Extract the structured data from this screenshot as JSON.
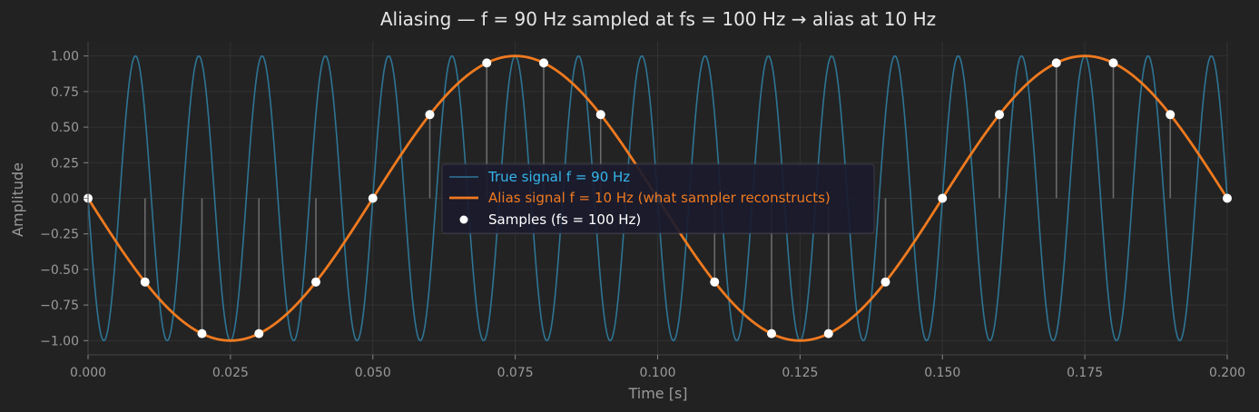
{
  "chart_data": {
    "type": "line",
    "title": "Aliasing  —  f = 90 Hz sampled at fs = 100 Hz  →  alias at 10 Hz",
    "xlabel": "Time [s]",
    "ylabel": "Amplitude",
    "xlim": [
      0,
      0.2
    ],
    "ylim": [
      -1.1,
      1.1
    ],
    "grid": true,
    "legend_position": "center",
    "x_ticks": [
      0,
      0.025,
      0.05,
      0.075,
      0.1,
      0.125,
      0.15,
      0.175,
      0.2
    ],
    "x_tick_labels": [
      "0.000",
      "0.025",
      "0.050",
      "0.075",
      "0.100",
      "0.125",
      "0.150",
      "0.175",
      "0.200"
    ],
    "y_ticks": [
      1,
      0.75,
      0.5,
      0.25,
      0,
      -0.25,
      -0.5,
      -0.75,
      -1
    ],
    "y_tick_labels": [
      "1.00",
      "0.75",
      "0.50",
      "0.25",
      "0.00",
      "−0.25",
      "−0.50",
      "−0.75",
      "−1.00"
    ],
    "series": [
      {
        "name": "True signal  f = 90 Hz",
        "kind": "line",
        "color": "#2e7595",
        "frequency_hz": 90,
        "amplitude": 1,
        "phase": "negative-sine"
      },
      {
        "name": "Alias signal  f = 10 Hz  (what sampler reconstructs)",
        "kind": "line",
        "color": "#f07a1f",
        "frequency_hz": 10,
        "amplitude": 1,
        "phase": "negative-sine"
      },
      {
        "name": "Samples  (fs = 100 Hz)",
        "kind": "scatter",
        "color": "#ffffff",
        "stem_color": "#6a6a6a",
        "x": [
          0,
          0.01,
          0.02,
          0.03,
          0.04,
          0.05,
          0.06,
          0.07,
          0.08,
          0.09,
          0.1,
          0.11,
          0.12,
          0.13,
          0.14,
          0.15,
          0.16,
          0.17,
          0.18,
          0.19,
          0.2
        ],
        "y": [
          0,
          -0.588,
          -0.951,
          -0.951,
          -0.588,
          0,
          0.588,
          0.951,
          0.951,
          0.588,
          0,
          -0.588,
          -0.951,
          -0.951,
          -0.588,
          0,
          0.588,
          0.951,
          0.951,
          0.588,
          0
        ]
      }
    ],
    "legend_text_colors": [
      "#35b5ea",
      "#f07a1f",
      "#ffffff"
    ]
  }
}
